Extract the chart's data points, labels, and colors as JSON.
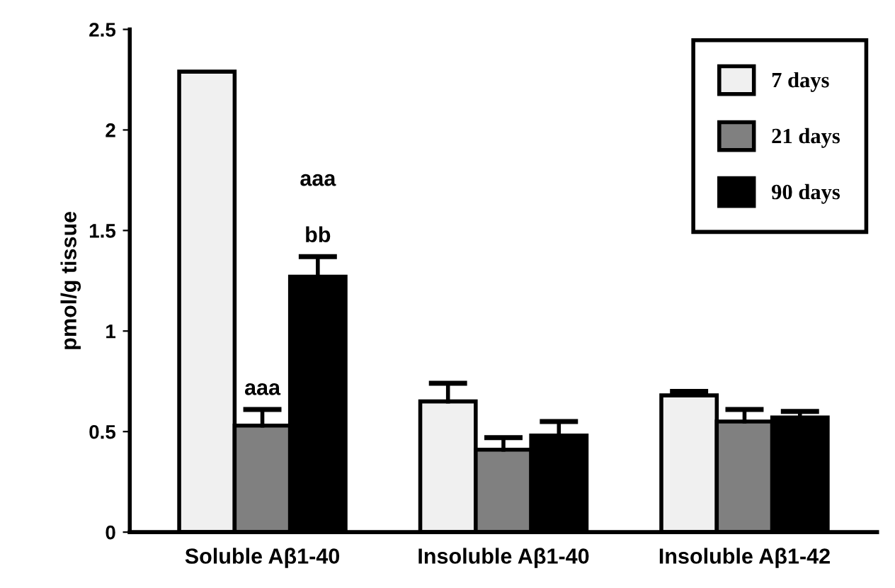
{
  "chart_data": {
    "type": "bar",
    "ylabel": "pmol/g tissue",
    "categories": [
      "Soluble Aβ1-40",
      "Insoluble Aβ1-40",
      "Insoluble Aβ1-42"
    ],
    "series": [
      {
        "name": "7 days",
        "color": "#f0f0f0",
        "values": [
          2.29,
          0.65,
          0.68
        ],
        "errors": [
          null,
          [
            0.65,
            0.74
          ],
          [
            0.68,
            0.7
          ]
        ]
      },
      {
        "name": "21 days",
        "color": "#808080",
        "values": [
          0.53,
          0.41,
          0.55
        ],
        "errors": [
          [
            0.53,
            0.61
          ],
          [
            0.41,
            0.47
          ],
          [
            0.55,
            0.61
          ]
        ]
      },
      {
        "name": "90 days",
        "color": "#000000",
        "values": [
          1.27,
          0.48,
          0.57
        ],
        "errors": [
          [
            1.27,
            1.37
          ],
          [
            0.48,
            0.55
          ],
          [
            0.57,
            0.6
          ]
        ]
      }
    ],
    "annotations": [
      "aaa",
      "bb",
      "aaa"
    ],
    "ylim": [
      0,
      2.5
    ],
    "yticks": [
      0,
      0.5,
      1,
      1.5,
      2,
      2.5
    ],
    "grid": false,
    "legend": "top right"
  }
}
